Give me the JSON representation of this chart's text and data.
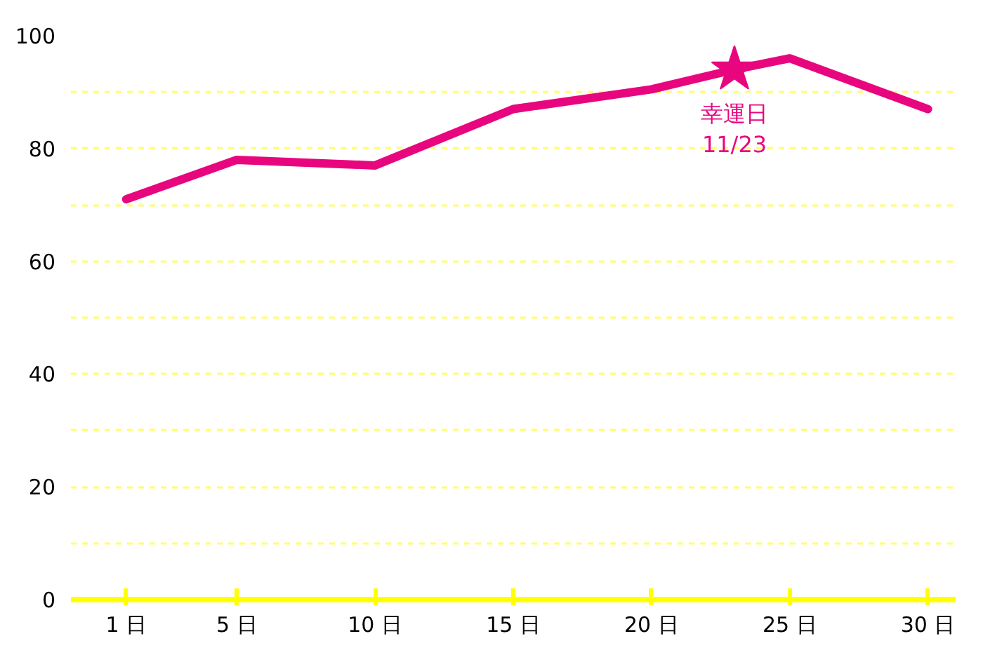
{
  "chart_data": {
    "type": "line",
    "x": [
      1,
      5,
      10,
      15,
      20,
      23,
      25,
      30
    ],
    "series": [
      {
        "color": "#e8067f",
        "values": [
          71,
          78,
          77,
          87,
          90.5,
          94,
          96,
          87
        ]
      }
    ],
    "xlim": [
      -1,
      31
    ],
    "xticks": [
      {
        "value": 1,
        "label": "1 日"
      },
      {
        "value": 5,
        "label": "5 日"
      },
      {
        "value": 10,
        "label": "10 日"
      },
      {
        "value": 15,
        "label": "15 日"
      },
      {
        "value": 20,
        "label": "20 日"
      },
      {
        "value": 25,
        "label": "25 日"
      },
      {
        "value": 30,
        "label": "30 日"
      }
    ],
    "ylim": [
      0,
      100
    ],
    "yticks": [
      0,
      {
        "value": 10,
        "label": null
      },
      20,
      {
        "value": 30,
        "label": null
      },
      40,
      {
        "value": 50,
        "label": null
      },
      60,
      {
        "value": 70,
        "label": null
      },
      80,
      {
        "value": 90,
        "label": null
      },
      100
    ],
    "grid": "y",
    "marker": "none",
    "line_style": "solid",
    "annotations": [
      {
        "text": "幸運日 11/23",
        "x": 23,
        "y": 94
      }
    ]
  }
}
